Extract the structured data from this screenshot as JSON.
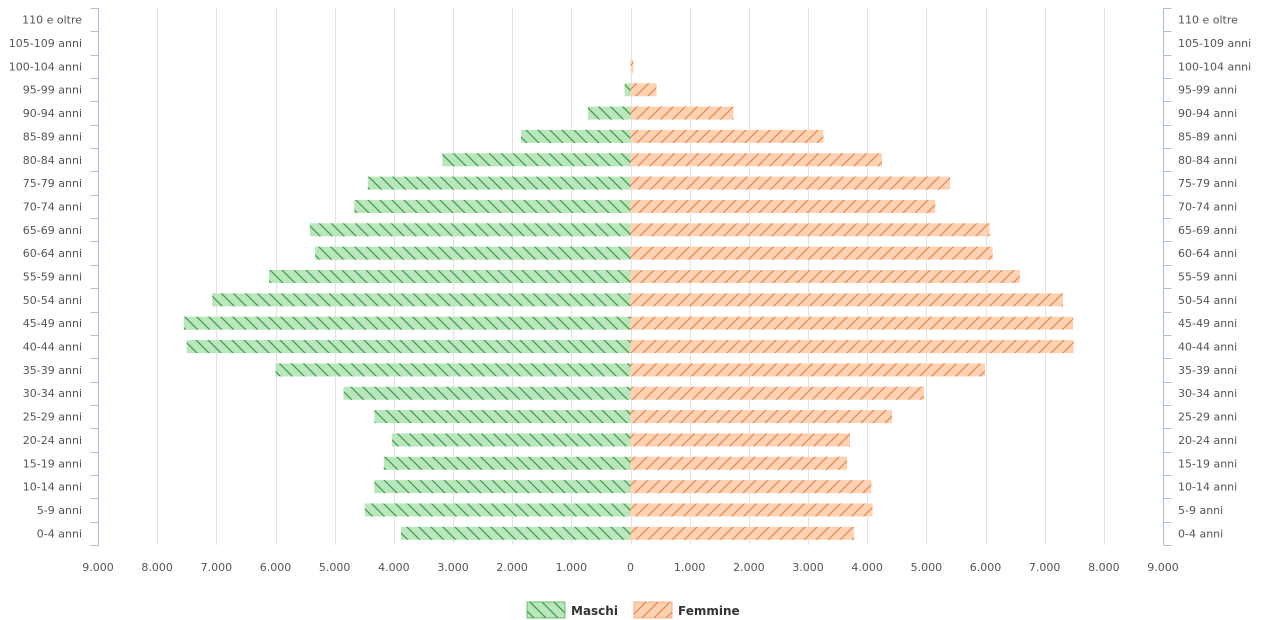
{
  "chart_data": {
    "type": "bar",
    "orientation": "horizontal",
    "layout": "population-pyramid",
    "categories": [
      "0-4 anni",
      "5-9 anni",
      "10-14 anni",
      "15-19 anni",
      "20-24 anni",
      "25-29 anni",
      "30-34 anni",
      "35-39 anni",
      "40-44 anni",
      "45-49 anni",
      "50-54 anni",
      "55-59 anni",
      "60-64 anni",
      "65-69 anni",
      "70-74 anni",
      "75-79 anni",
      "80-84 anni",
      "85-89 anni",
      "90-94 anni",
      "95-99 anni",
      "100-104 anni",
      "105-109 anni",
      "110 e oltre"
    ],
    "series": [
      {
        "name": "Maschi",
        "color": "#b9e6bd",
        "stroke": "#4caf50",
        "values": [
          3880,
          4490,
          4330,
          4170,
          4030,
          4330,
          4850,
          6000,
          7500,
          7550,
          7070,
          6110,
          5330,
          5420,
          4670,
          4440,
          3180,
          1850,
          720,
          100,
          0,
          0,
          0
        ]
      },
      {
        "name": "Femmine",
        "color": "#ffd2b3",
        "stroke": "#f0a070",
        "values": [
          3780,
          4090,
          4070,
          3660,
          3710,
          4420,
          4960,
          5990,
          7490,
          7480,
          7310,
          6580,
          6120,
          6070,
          5150,
          5400,
          4250,
          3260,
          1740,
          440,
          50,
          0,
          0
        ]
      }
    ],
    "xlim": [
      -9000,
      9000
    ],
    "x_ticks": [
      -9000,
      -8000,
      -7000,
      -6000,
      -5000,
      -4000,
      -3000,
      -2000,
      -1000,
      0,
      1000,
      2000,
      3000,
      4000,
      5000,
      6000,
      7000,
      8000,
      9000
    ],
    "x_tick_labels": [
      "9.000",
      "8.000",
      "7.000",
      "6.000",
      "5.000",
      "4.000",
      "3.000",
      "2.000",
      "1.000",
      "0",
      "1.000",
      "2.000",
      "3.000",
      "4.000",
      "5.000",
      "6.000",
      "7.000",
      "8.000",
      "9.000"
    ],
    "grid": "vertical",
    "legend_position": "bottom-center",
    "title": "",
    "xlabel": "",
    "ylabel": ""
  }
}
